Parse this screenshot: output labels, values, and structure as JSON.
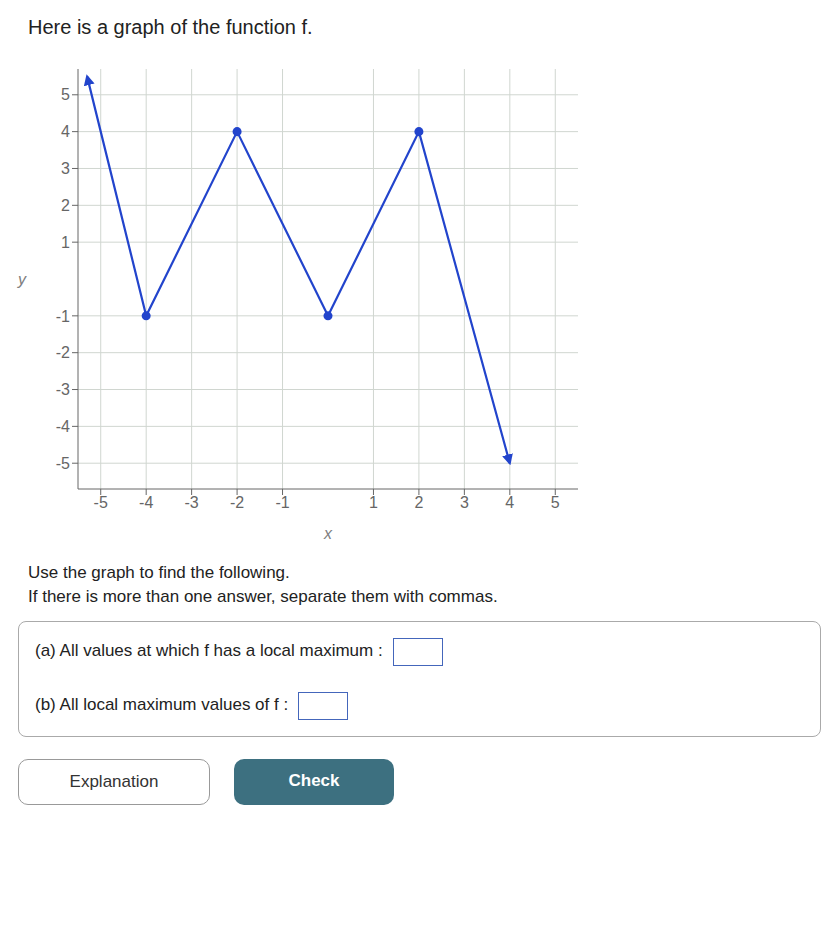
{
  "chart_data": {
    "type": "line",
    "title": "Here is a graph of the function f.",
    "x_label": "x",
    "y_label": "y",
    "x": [
      -5.3,
      -4.0,
      -2.0,
      0.0,
      2.0,
      4.0
    ],
    "values": [
      5.5,
      -1.0,
      4.0,
      -1.0,
      4.0,
      -5.0
    ],
    "color": "#2244cc",
    "turning_points": [
      [
        -2.0,
        4.0
      ],
      [
        2.0,
        4.0
      ],
      [
        -4.0,
        -1.0
      ],
      [
        0.0,
        -1.0
      ]
    ],
    "xlim": [
      -5.5,
      5.5
    ],
    "ylim": [
      -5.7,
      5.7
    ],
    "xticks": [
      -5,
      -4,
      -3,
      -2,
      -1,
      1,
      2,
      3,
      4,
      5
    ],
    "yticks": [
      -5,
      -4,
      -3,
      -2,
      -1,
      1,
      2,
      3,
      4,
      5
    ],
    "grid": true,
    "annotations": [
      "Use the graph to find the following.",
      "If there is more than one answer, separate them with commas.",
      "(a) All values at which f has a local maximum :",
      "(b) All local maximum values of f :",
      "Explanation",
      "Check"
    ]
  }
}
